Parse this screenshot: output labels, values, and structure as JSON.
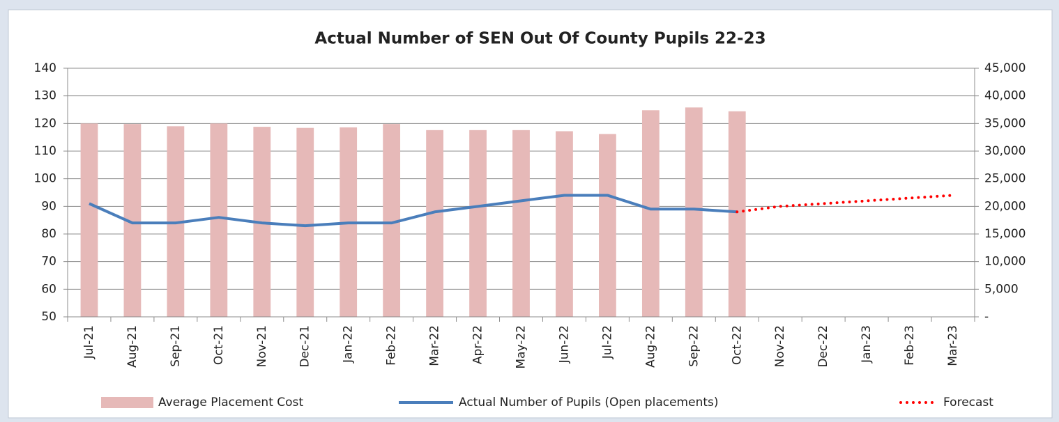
{
  "chart_data": {
    "type": "bar",
    "title": "Actual Number of SEN Out Of County Pupils 22-23",
    "categories": [
      "Jul-21",
      "Aug-21",
      "Sep-21",
      "Oct-21",
      "Nov-21",
      "Dec-21",
      "Jan-22",
      "Feb-22",
      "Mar-22",
      "Apr-22",
      "May-22",
      "Jun-22",
      "Jul-22",
      "Aug-22",
      "Sep-22",
      "Oct-22",
      "Nov-22",
      "Dec-22",
      "Jan-23",
      "Feb-23",
      "Mar-23"
    ],
    "series": [
      {
        "name": "Average Placement Cost",
        "type": "bar",
        "axis": "y2",
        "color": "#e6b9b8",
        "values": [
          35000,
          34900,
          34500,
          35000,
          34400,
          34200,
          34300,
          34900,
          33800,
          33800,
          33800,
          33600,
          33100,
          37400,
          37900,
          37200,
          null,
          null,
          null,
          null,
          null
        ]
      },
      {
        "name": "Actual Number of Pupils (Open placements)",
        "type": "line",
        "color": "#4a7ebb",
        "values": [
          91,
          84,
          84,
          86,
          84,
          83,
          84,
          84,
          88,
          90,
          92,
          94,
          94,
          89,
          89,
          88,
          null,
          null,
          null,
          null,
          null
        ]
      },
      {
        "name": "Forecast",
        "type": "line",
        "dotted": true,
        "color": "#ff0000",
        "values": [
          null,
          null,
          null,
          null,
          null,
          null,
          null,
          null,
          null,
          null,
          null,
          null,
          null,
          null,
          null,
          88,
          90,
          91,
          92,
          93,
          94
        ]
      }
    ],
    "ylim": [
      50,
      140
    ],
    "yticks": [
      50,
      60,
      70,
      80,
      90,
      100,
      110,
      120,
      130,
      140
    ],
    "y2lim": [
      0,
      45000
    ],
    "y2ticks": [
      {
        "value": 0,
        "label": "-"
      },
      {
        "value": 5000,
        "label": "5,000"
      },
      {
        "value": 10000,
        "label": "10,000"
      },
      {
        "value": 15000,
        "label": "15,000"
      },
      {
        "value": 20000,
        "label": "20,000"
      },
      {
        "value": 25000,
        "label": "25,000"
      },
      {
        "value": 30000,
        "label": "30,000"
      },
      {
        "value": 35000,
        "label": "35,000"
      },
      {
        "value": 40000,
        "label": "40,000"
      },
      {
        "value": 45000,
        "label": "45,000"
      }
    ],
    "grid": true,
    "legend": "bottom"
  }
}
